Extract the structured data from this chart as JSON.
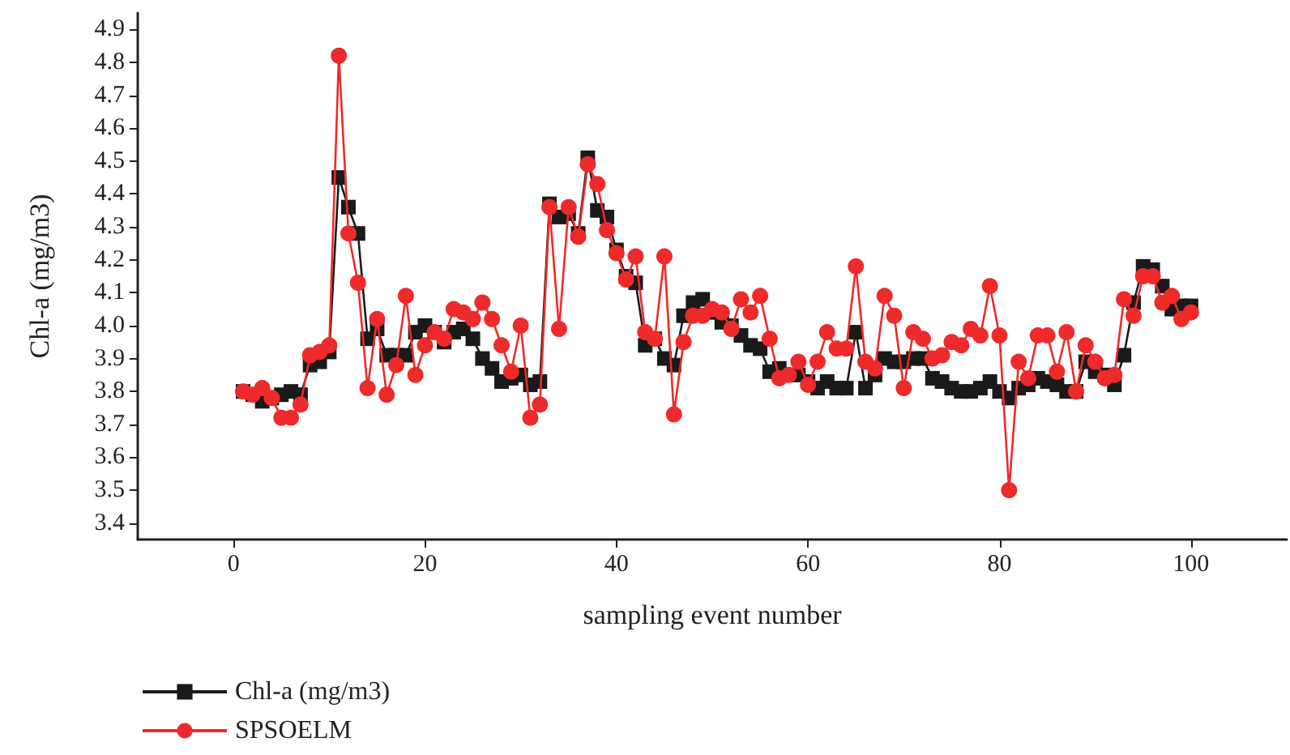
{
  "chart_data": {
    "type": "line",
    "xlabel": "sampling event number",
    "ylabel": "Chl-a (mg/m3)",
    "x": [
      1,
      2,
      3,
      4,
      5,
      6,
      7,
      8,
      9,
      10,
      11,
      12,
      13,
      14,
      15,
      16,
      17,
      18,
      19,
      20,
      21,
      22,
      23,
      24,
      25,
      26,
      27,
      28,
      29,
      30,
      31,
      32,
      33,
      34,
      35,
      36,
      37,
      38,
      39,
      40,
      41,
      42,
      43,
      44,
      45,
      46,
      47,
      48,
      49,
      50,
      51,
      52,
      53,
      54,
      55,
      56,
      57,
      58,
      59,
      60,
      61,
      62,
      63,
      64,
      65,
      66,
      67,
      68,
      69,
      70,
      71,
      72,
      73,
      74,
      75,
      76,
      77,
      78,
      79,
      80,
      81,
      82,
      83,
      84,
      85,
      86,
      87,
      88,
      89,
      90,
      91,
      92,
      93,
      94,
      95,
      96,
      97,
      98,
      99,
      100
    ],
    "xlim": [
      -10,
      110
    ],
    "xticks": [
      0,
      20,
      40,
      60,
      80,
      100
    ],
    "ylim": [
      3.35,
      4.95
    ],
    "yticks": [
      3.4,
      3.5,
      3.6,
      3.7,
      3.8,
      3.9,
      {
        "value": 4,
        "label": "4.0"
      },
      4.1,
      4.2,
      4.3,
      4.4,
      4.5,
      4.6,
      4.7,
      4.8,
      4.9
    ],
    "series": [
      {
        "name": "Chl-a (mg/m3)",
        "color": "#1a1a1a",
        "marker": "square",
        "values": [
          3.8,
          3.79,
          3.77,
          3.78,
          3.79,
          3.8,
          3.79,
          3.88,
          3.89,
          3.92,
          4.45,
          4.36,
          4.28,
          3.96,
          3.99,
          3.91,
          3.91,
          3.91,
          3.98,
          4.0,
          3.98,
          3.95,
          3.98,
          3.99,
          3.96,
          3.9,
          3.87,
          3.83,
          3.84,
          3.85,
          3.82,
          3.83,
          4.37,
          4.33,
          4.34,
          4.28,
          4.51,
          4.35,
          4.33,
          4.23,
          4.15,
          4.13,
          3.94,
          3.96,
          3.9,
          3.88,
          4.03,
          4.07,
          4.08,
          4.04,
          4.01,
          4.0,
          3.97,
          3.94,
          3.93,
          3.86,
          3.87,
          3.85,
          3.85,
          3.83,
          3.81,
          3.83,
          3.81,
          3.81,
          3.98,
          3.81,
          3.85,
          3.9,
          3.89,
          3.89,
          3.9,
          3.9,
          3.84,
          3.83,
          3.81,
          3.8,
          3.8,
          3.81,
          3.83,
          3.8,
          3.78,
          3.81,
          3.82,
          3.84,
          3.83,
          3.82,
          3.8,
          3.8,
          3.89,
          3.86,
          3.85,
          3.82,
          3.91,
          4.07,
          4.18,
          4.17,
          4.12,
          4.05,
          4.06,
          4.06
        ]
      },
      {
        "name": "SPSOELM",
        "color": "#ee2a2a",
        "marker": "circle",
        "values": [
          3.8,
          3.79,
          3.81,
          3.78,
          3.72,
          3.72,
          3.76,
          3.91,
          3.92,
          3.94,
          4.82,
          4.28,
          4.13,
          3.81,
          4.02,
          3.79,
          3.88,
          4.09,
          3.85,
          3.94,
          3.98,
          3.96,
          4.05,
          4.04,
          4.02,
          4.07,
          4.02,
          3.94,
          3.86,
          4.0,
          3.72,
          3.76,
          4.36,
          3.99,
          4.36,
          4.27,
          4.49,
          4.43,
          4.29,
          4.22,
          4.14,
          4.21,
          3.98,
          3.96,
          4.21,
          3.73,
          3.95,
          4.03,
          4.03,
          4.05,
          4.04,
          3.99,
          4.08,
          4.04,
          4.09,
          3.96,
          3.84,
          3.85,
          3.89,
          3.82,
          3.89,
          3.98,
          3.93,
          3.93,
          4.18,
          3.89,
          3.87,
          4.09,
          4.03,
          3.81,
          3.98,
          3.96,
          3.9,
          3.91,
          3.95,
          3.94,
          3.99,
          3.97,
          4.12,
          3.97,
          3.5,
          3.89,
          3.84,
          3.97,
          3.97,
          3.86,
          3.98,
          3.8,
          3.94,
          3.89,
          3.84,
          3.85,
          4.08,
          4.03,
          4.15,
          4.15,
          4.07,
          4.09,
          4.02,
          4.04
        ]
      }
    ],
    "grid": false,
    "legend": "bottom left",
    "line_style": "solid"
  }
}
